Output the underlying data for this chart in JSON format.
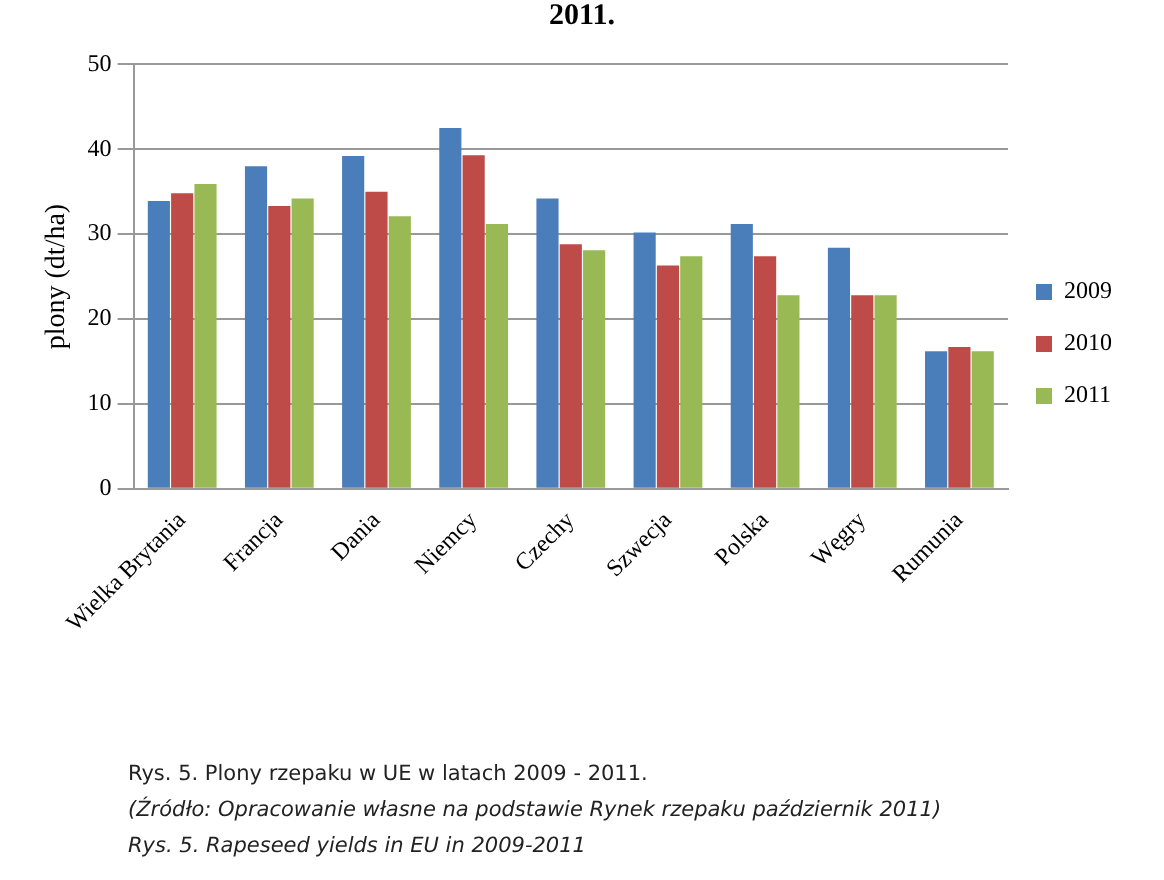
{
  "chart_data": {
    "type": "bar",
    "title": "2011.",
    "ylabel": "plony (dt/ha)",
    "categories": [
      "Wielka Brytania",
      "Francja",
      "Dania",
      "Niemcy",
      "Czechy",
      "Szwecja",
      "Polska",
      "Węgry",
      "Rumunia"
    ],
    "series": [
      {
        "name": "2009",
        "color": "#4a7ebb",
        "values": [
          33.9,
          38.0,
          39.2,
          42.5,
          34.2,
          30.2,
          31.2,
          28.4,
          16.2
        ]
      },
      {
        "name": "2010",
        "color": "#be4b48",
        "values": [
          34.8,
          33.3,
          35.0,
          39.3,
          28.8,
          26.3,
          27.4,
          22.8,
          16.7
        ]
      },
      {
        "name": "2011",
        "color": "#98b954",
        "values": [
          35.9,
          34.2,
          32.1,
          31.2,
          28.1,
          27.4,
          22.8,
          22.8,
          16.2
        ]
      }
    ],
    "ylim": [
      0,
      50
    ],
    "yticks": [
      0,
      10,
      20,
      30,
      40,
      50
    ],
    "grid": "y",
    "legend": "right",
    "annotations": [
      "Rys. 5. Plony rzepaku w UE w latach 2009 - 2011.",
      "(Źródło: Opracowanie własne na podstawie Rynek rzepaku październik 2011)",
      "Rys. 5. Rapeseed yields in EU in 2009-2011"
    ]
  }
}
